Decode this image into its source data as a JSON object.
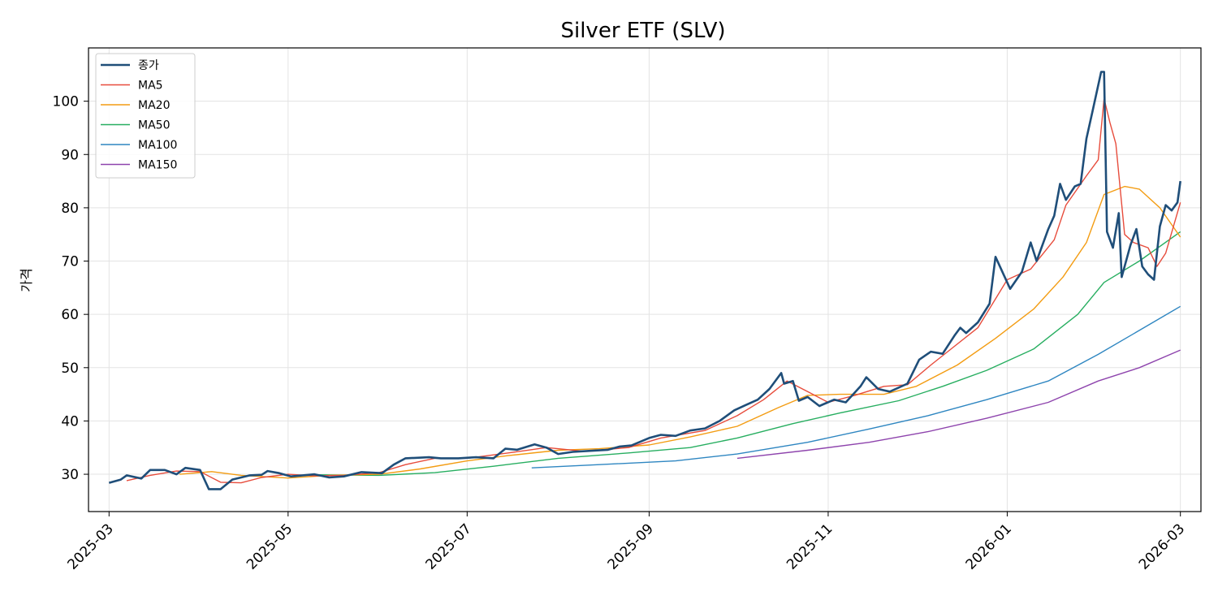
{
  "chart_data": {
    "type": "line",
    "title": "Silver ETF (SLV)",
    "xlabel": "",
    "ylabel": "가격",
    "x_range": [
      "2025-02-22",
      "2026-03-08"
    ],
    "ylim": [
      23,
      110
    ],
    "y_ticks": [
      30,
      40,
      50,
      60,
      70,
      80,
      90,
      100
    ],
    "x_ticks": [
      "2025-03",
      "2025-05",
      "2025-07",
      "2025-09",
      "2025-11",
      "2026-01",
      "2026-03"
    ],
    "grid": true,
    "legend_position": "top-left",
    "series": [
      {
        "name": "종가",
        "color": "#1f4e79",
        "points": [
          [
            "2025-03-01",
            28.4
          ],
          [
            "2025-03-05",
            29.0
          ],
          [
            "2025-03-07",
            29.8
          ],
          [
            "2025-03-12",
            29.2
          ],
          [
            "2025-03-15",
            30.8
          ],
          [
            "2025-03-20",
            30.8
          ],
          [
            "2025-03-24",
            30.0
          ],
          [
            "2025-03-27",
            31.2
          ],
          [
            "2025-04-01",
            30.8
          ],
          [
            "2025-04-04",
            27.2
          ],
          [
            "2025-04-08",
            27.2
          ],
          [
            "2025-04-12",
            29.0
          ],
          [
            "2025-04-18",
            29.8
          ],
          [
            "2025-04-22",
            29.9
          ],
          [
            "2025-04-24",
            30.6
          ],
          [
            "2025-04-28",
            30.2
          ],
          [
            "2025-05-02",
            29.6
          ],
          [
            "2025-05-06",
            29.8
          ],
          [
            "2025-05-10",
            30.0
          ],
          [
            "2025-05-15",
            29.4
          ],
          [
            "2025-05-20",
            29.6
          ],
          [
            "2025-05-26",
            30.4
          ],
          [
            "2025-06-02",
            30.2
          ],
          [
            "2025-06-06",
            31.8
          ],
          [
            "2025-06-10",
            33.0
          ],
          [
            "2025-06-18",
            33.2
          ],
          [
            "2025-06-22",
            33.0
          ],
          [
            "2025-06-28",
            33.0
          ],
          [
            "2025-07-04",
            33.2
          ],
          [
            "2025-07-10",
            33.0
          ],
          [
            "2025-07-14",
            34.8
          ],
          [
            "2025-07-18",
            34.6
          ],
          [
            "2025-07-24",
            35.6
          ],
          [
            "2025-07-28",
            35.0
          ],
          [
            "2025-08-01",
            33.8
          ],
          [
            "2025-08-06",
            34.2
          ],
          [
            "2025-08-12",
            34.4
          ],
          [
            "2025-08-18",
            34.6
          ],
          [
            "2025-08-22",
            35.2
          ],
          [
            "2025-08-26",
            35.4
          ],
          [
            "2025-09-01",
            36.8
          ],
          [
            "2025-09-05",
            37.4
          ],
          [
            "2025-09-10",
            37.2
          ],
          [
            "2025-09-15",
            38.2
          ],
          [
            "2025-09-20",
            38.6
          ],
          [
            "2025-09-25",
            40.0
          ],
          [
            "2025-09-30",
            42.0
          ],
          [
            "2025-10-04",
            43.0
          ],
          [
            "2025-10-08",
            44.0
          ],
          [
            "2025-10-12",
            46.0
          ],
          [
            "2025-10-16",
            49.0
          ],
          [
            "2025-10-17",
            47.0
          ],
          [
            "2025-10-20",
            47.5
          ],
          [
            "2025-10-22",
            43.8
          ],
          [
            "2025-10-25",
            44.5
          ],
          [
            "2025-10-29",
            42.8
          ],
          [
            "2025-11-03",
            44.0
          ],
          [
            "2025-11-07",
            43.5
          ],
          [
            "2025-11-12",
            46.5
          ],
          [
            "2025-11-14",
            48.2
          ],
          [
            "2025-11-18",
            46.0
          ],
          [
            "2025-11-22",
            45.5
          ],
          [
            "2025-11-28",
            47.0
          ],
          [
            "2025-12-02",
            51.5
          ],
          [
            "2025-12-06",
            53.0
          ],
          [
            "2025-12-10",
            52.6
          ],
          [
            "2025-12-14",
            56.0
          ],
          [
            "2025-12-16",
            57.5
          ],
          [
            "2025-12-18",
            56.5
          ],
          [
            "2025-12-22",
            58.5
          ],
          [
            "2025-12-26",
            62.0
          ],
          [
            "2025-12-28",
            70.8
          ],
          [
            "2026-01-02",
            64.8
          ],
          [
            "2026-01-06",
            68.0
          ],
          [
            "2026-01-09",
            73.5
          ],
          [
            "2026-01-11",
            70.0
          ],
          [
            "2026-01-15",
            76.0
          ],
          [
            "2026-01-17",
            78.5
          ],
          [
            "2026-01-19",
            84.5
          ],
          [
            "2026-01-21",
            81.5
          ],
          [
            "2026-01-24",
            84.0
          ],
          [
            "2026-01-26",
            84.5
          ],
          [
            "2026-01-28",
            93.0
          ],
          [
            "2026-01-30",
            98.0
          ],
          [
            "2026-02-02",
            105.5
          ],
          [
            "2026-02-03",
            105.5
          ],
          [
            "2026-02-04",
            75.5
          ],
          [
            "2026-02-06",
            72.5
          ],
          [
            "2026-02-08",
            79.0
          ],
          [
            "2026-02-09",
            67.0
          ],
          [
            "2026-02-12",
            73.0
          ],
          [
            "2026-02-14",
            76.0
          ],
          [
            "2026-02-16",
            69.0
          ],
          [
            "2026-02-18",
            67.5
          ],
          [
            "2026-02-20",
            66.5
          ],
          [
            "2026-02-22",
            76.5
          ],
          [
            "2026-02-24",
            80.5
          ],
          [
            "2026-02-26",
            79.5
          ],
          [
            "2026-02-28",
            81.0
          ],
          [
            "2026-03-01",
            85.0
          ]
        ]
      },
      {
        "name": "MA5",
        "color": "#e74c3c",
        "points": [
          [
            "2025-03-07",
            28.8
          ],
          [
            "2025-03-15",
            29.8
          ],
          [
            "2025-03-24",
            30.6
          ],
          [
            "2025-04-01",
            30.5
          ],
          [
            "2025-04-08",
            28.5
          ],
          [
            "2025-04-15",
            28.4
          ],
          [
            "2025-04-22",
            29.4
          ],
          [
            "2025-05-01",
            30.0
          ],
          [
            "2025-05-10",
            29.7
          ],
          [
            "2025-05-20",
            29.8
          ],
          [
            "2025-06-01",
            30.3
          ],
          [
            "2025-06-10",
            31.8
          ],
          [
            "2025-06-20",
            33.0
          ],
          [
            "2025-07-01",
            33.0
          ],
          [
            "2025-07-15",
            34.0
          ],
          [
            "2025-07-28",
            35.0
          ],
          [
            "2025-08-10",
            34.3
          ],
          [
            "2025-08-25",
            35.0
          ],
          [
            "2025-09-05",
            36.8
          ],
          [
            "2025-09-20",
            38.2
          ],
          [
            "2025-10-01",
            41.0
          ],
          [
            "2025-10-10",
            44.0
          ],
          [
            "2025-10-18",
            47.5
          ],
          [
            "2025-10-25",
            45.5
          ],
          [
            "2025-11-01",
            43.5
          ],
          [
            "2025-11-10",
            44.8
          ],
          [
            "2025-11-20",
            46.5
          ],
          [
            "2025-11-28",
            46.8
          ],
          [
            "2025-12-06",
            50.5
          ],
          [
            "2025-12-14",
            54.0
          ],
          [
            "2025-12-22",
            57.5
          ],
          [
            "2026-01-01",
            66.5
          ],
          [
            "2026-01-09",
            68.5
          ],
          [
            "2026-01-17",
            74.0
          ],
          [
            "2026-01-21",
            80.5
          ],
          [
            "2026-01-28",
            86.0
          ],
          [
            "2026-02-01",
            89.0
          ],
          [
            "2026-02-03",
            100.5
          ],
          [
            "2026-02-05",
            96.0
          ],
          [
            "2026-02-07",
            92.0
          ],
          [
            "2026-02-10",
            75.0
          ],
          [
            "2026-02-13",
            73.5
          ],
          [
            "2026-02-18",
            72.5
          ],
          [
            "2026-02-21",
            69.0
          ],
          [
            "2026-02-24",
            71.5
          ],
          [
            "2026-03-01",
            81.0
          ]
        ]
      },
      {
        "name": "MA20",
        "color": "#f39c12",
        "points": [
          [
            "2025-03-25",
            30.0
          ],
          [
            "2025-04-05",
            30.5
          ],
          [
            "2025-04-15",
            29.8
          ],
          [
            "2025-05-01",
            29.3
          ],
          [
            "2025-05-15",
            29.8
          ],
          [
            "2025-06-01",
            30.0
          ],
          [
            "2025-06-15",
            31.0
          ],
          [
            "2025-07-01",
            32.5
          ],
          [
            "2025-07-15",
            33.5
          ],
          [
            "2025-08-01",
            34.5
          ],
          [
            "2025-08-15",
            34.8
          ],
          [
            "2025-09-01",
            35.5
          ],
          [
            "2025-09-15",
            37.0
          ],
          [
            "2025-10-01",
            39.0
          ],
          [
            "2025-10-15",
            42.5
          ],
          [
            "2025-10-25",
            44.8
          ],
          [
            "2025-11-05",
            45.0
          ],
          [
            "2025-11-20",
            45.0
          ],
          [
            "2025-12-01",
            46.5
          ],
          [
            "2025-12-15",
            50.5
          ],
          [
            "2025-12-28",
            55.5
          ],
          [
            "2026-01-10",
            61.0
          ],
          [
            "2026-01-20",
            67.0
          ],
          [
            "2026-01-28",
            73.5
          ],
          [
            "2026-02-03",
            82.5
          ],
          [
            "2026-02-10",
            84.0
          ],
          [
            "2026-02-15",
            83.5
          ],
          [
            "2026-02-22",
            80.0
          ],
          [
            "2026-03-01",
            74.5
          ]
        ]
      },
      {
        "name": "MA50",
        "color": "#27ae60",
        "points": [
          [
            "2025-05-10",
            29.9
          ],
          [
            "2025-06-01",
            29.8
          ],
          [
            "2025-06-20",
            30.3
          ],
          [
            "2025-07-10",
            31.5
          ],
          [
            "2025-08-01",
            33.0
          ],
          [
            "2025-08-25",
            34.0
          ],
          [
            "2025-09-15",
            35.0
          ],
          [
            "2025-10-01",
            36.8
          ],
          [
            "2025-10-20",
            39.5
          ],
          [
            "2025-11-05",
            41.5
          ],
          [
            "2025-11-25",
            43.8
          ],
          [
            "2025-12-10",
            46.5
          ],
          [
            "2025-12-25",
            49.5
          ],
          [
            "2026-01-10",
            53.5
          ],
          [
            "2026-01-25",
            60.0
          ],
          [
            "2026-02-03",
            66.0
          ],
          [
            "2026-02-15",
            70.0
          ],
          [
            "2026-03-01",
            75.5
          ]
        ]
      },
      {
        "name": "MA100",
        "color": "#2e86c1",
        "points": [
          [
            "2025-07-23",
            31.2
          ],
          [
            "2025-08-15",
            31.8
          ],
          [
            "2025-09-10",
            32.5
          ],
          [
            "2025-10-01",
            33.8
          ],
          [
            "2025-10-25",
            36.0
          ],
          [
            "2025-11-15",
            38.5
          ],
          [
            "2025-12-05",
            41.0
          ],
          [
            "2025-12-25",
            44.0
          ],
          [
            "2026-01-15",
            47.5
          ],
          [
            "2026-02-01",
            52.5
          ],
          [
            "2026-02-15",
            57.0
          ],
          [
            "2026-03-01",
            61.5
          ]
        ]
      },
      {
        "name": "MA150",
        "color": "#8e44ad",
        "points": [
          [
            "2025-10-01",
            33.0
          ],
          [
            "2025-10-25",
            34.5
          ],
          [
            "2025-11-15",
            36.0
          ],
          [
            "2025-12-05",
            38.0
          ],
          [
            "2025-12-25",
            40.5
          ],
          [
            "2026-01-15",
            43.5
          ],
          [
            "2026-02-01",
            47.5
          ],
          [
            "2026-02-15",
            50.0
          ],
          [
            "2026-03-01",
            53.3
          ]
        ]
      }
    ]
  }
}
